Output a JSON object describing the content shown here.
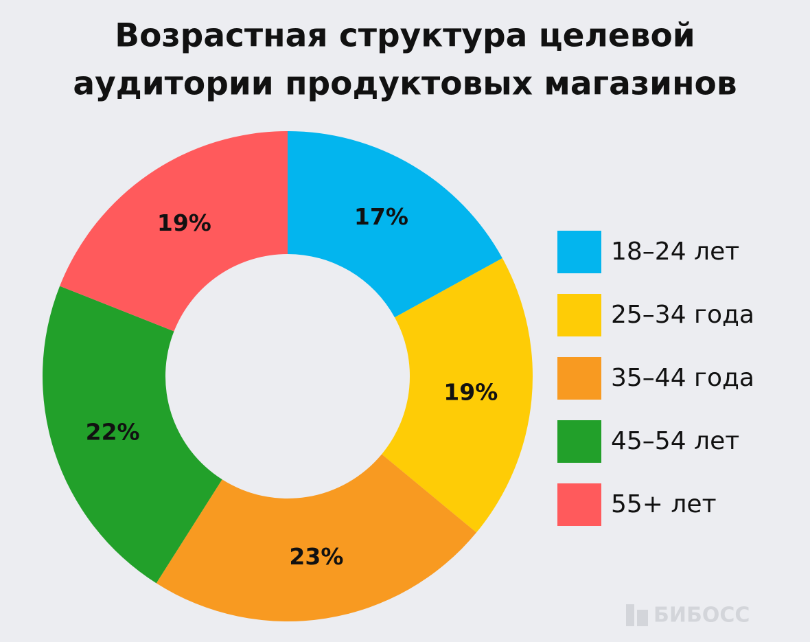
{
  "chart_data": {
    "type": "donut",
    "title": [
      "Возрастная структура целевой",
      "аудитории продуктовых магазинов"
    ],
    "categories": [
      "18–24 лет",
      "25–34 года",
      "35–44 года",
      "45–54 лет",
      "55+ лет"
    ],
    "values": [
      17,
      19,
      23,
      22,
      19
    ],
    "value_labels": [
      "17%",
      "19%",
      "23%",
      "22%",
      "19%"
    ],
    "colors": [
      "#03b5ee",
      "#fecc06",
      "#f89a21",
      "#22a02a",
      "#ff5a5c"
    ],
    "watermark": "БИБОСС"
  }
}
